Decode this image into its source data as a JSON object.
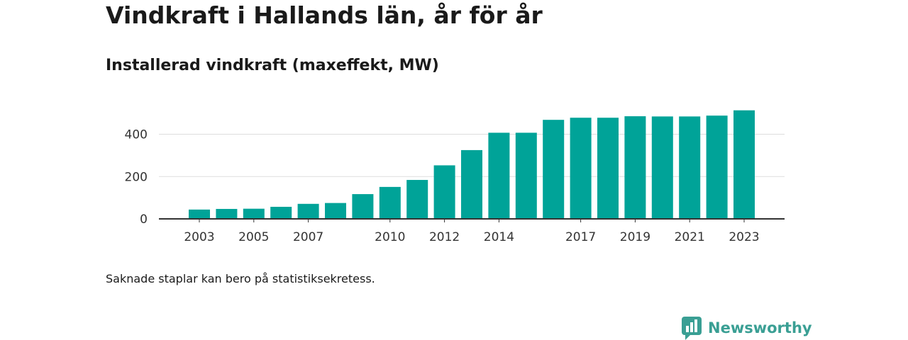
{
  "header": {
    "title": "Vindkraft i Hallands län, år för år",
    "subtitle": "Installerad vindkraft (maxeffekt, MW)"
  },
  "footnote": "Saknade staplar kan bero på statistiksekretess.",
  "brand": {
    "name": "Newsworthy",
    "icon": "newsworthy-logo-icon",
    "color": "#3a9f94"
  },
  "chart_data": {
    "type": "bar",
    "categories": [
      "2003",
      "2004",
      "2005",
      "2006",
      "2007",
      "2008",
      "2009",
      "2010",
      "2011",
      "2012",
      "2013",
      "2014",
      "2015",
      "2016",
      "2017",
      "2018",
      "2019",
      "2020",
      "2021",
      "2022",
      "2023"
    ],
    "values": [
      44,
      47,
      48,
      57,
      71,
      75,
      117,
      151,
      184,
      253,
      325,
      407,
      407,
      468,
      478,
      478,
      485,
      484,
      484,
      488,
      513
    ],
    "xtick_labels": [
      "2003",
      "2005",
      "2007",
      "2010",
      "2012",
      "2014",
      "2017",
      "2019",
      "2021",
      "2023"
    ],
    "yticks": [
      0,
      200,
      400
    ],
    "ylim": [
      0,
      540
    ],
    "bar_color": "#00a398",
    "grid": true
  }
}
